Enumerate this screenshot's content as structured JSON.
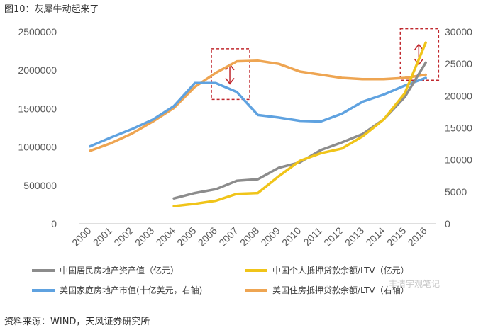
{
  "caption": "图10：灰犀牛动起来了",
  "source": "资料来源：WIND，天风证券研究所",
  "watermark": "丰清宇观笔记",
  "colors": {
    "china_asset": "#8c8c8c",
    "china_loan": "#f0c419",
    "us_value": "#5fa2e0",
    "us_loan": "#eea552",
    "highlight_box": "#c0272d",
    "axis_text": "#595959"
  },
  "chart_data": {
    "type": "line",
    "x": [
      "2000",
      "2001",
      "2002",
      "2003",
      "2004",
      "2005",
      "2006",
      "2007",
      "2008",
      "2009",
      "2010",
      "2011",
      "2012",
      "2013",
      "2014",
      "2015",
      "2016"
    ],
    "y_left": {
      "ylim": [
        0,
        2500000
      ],
      "ticks": [
        0,
        500000,
        1000000,
        1500000,
        2000000,
        2500000
      ]
    },
    "y_right": {
      "ylim": [
        0,
        30000
      ],
      "ticks": [
        0,
        5000,
        10000,
        15000,
        20000,
        25000,
        30000
      ]
    },
    "series": [
      {
        "name": "中国居民房地产资产值（亿元）",
        "axis": "left",
        "color_key": "china_asset",
        "values": [
          null,
          null,
          null,
          null,
          330000,
          400000,
          450000,
          560000,
          580000,
          730000,
          800000,
          960000,
          1060000,
          1170000,
          1360000,
          1650000,
          2100000
        ]
      },
      {
        "name": "中国个人抵押贷款余额/LTV（亿元）",
        "axis": "left",
        "color_key": "china_loan",
        "values": [
          null,
          null,
          null,
          null,
          230000,
          260000,
          300000,
          390000,
          400000,
          620000,
          820000,
          920000,
          980000,
          1140000,
          1360000,
          1700000,
          2360000
        ]
      },
      {
        "name": "美国家庭房地产市值(十亿美元，右轴)",
        "axis": "right",
        "color_key": "us_value",
        "values": [
          12100,
          13500,
          14800,
          16300,
          18400,
          22000,
          22000,
          20600,
          17000,
          16600,
          16100,
          16000,
          17200,
          19100,
          20200,
          21600,
          22800
        ]
      },
      {
        "name": "美国住房抵押贷款余额/LTV（右轴）",
        "axis": "right",
        "color_key": "us_loan",
        "values": [
          11400,
          12600,
          14100,
          16000,
          18100,
          21400,
          23600,
          25400,
          25500,
          25000,
          23800,
          23300,
          22800,
          22600,
          22600,
          22800,
          23300
        ]
      }
    ],
    "grid": false,
    "legend_position": "bottom",
    "annotations": [
      {
        "kind": "dashed-box-with-double-arrow",
        "x": "2006.7",
        "y_left": [
          1620000,
          2280000
        ]
      },
      {
        "kind": "dashed-box-with-double-arrow",
        "x": "2015.7",
        "y_left": [
          1870000,
          2540000
        ]
      }
    ]
  }
}
